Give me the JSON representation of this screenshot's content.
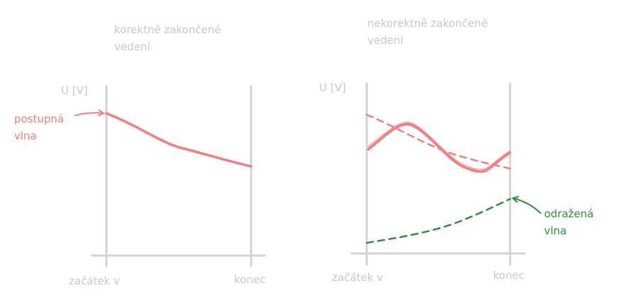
{
  "colors": {
    "axis": "#d3d3d3",
    "text_muted": "#c9c9c9",
    "incident_wave": "#f08080",
    "reflected_wave": "#2f8f3a"
  },
  "left_panel": {
    "title": "korektně zakončené\nvedení",
    "y_axis_label": "U [V]",
    "x_start_label": "začátek v",
    "x_end_label": "konec",
    "annotation": "postupná\nvlna"
  },
  "right_panel": {
    "title": "nekorektně zakončené\nvedení",
    "y_axis_label": "U [V]",
    "x_start_label": "začátek v",
    "x_end_label": "konec",
    "annotation": "odražená\nvlna"
  }
}
